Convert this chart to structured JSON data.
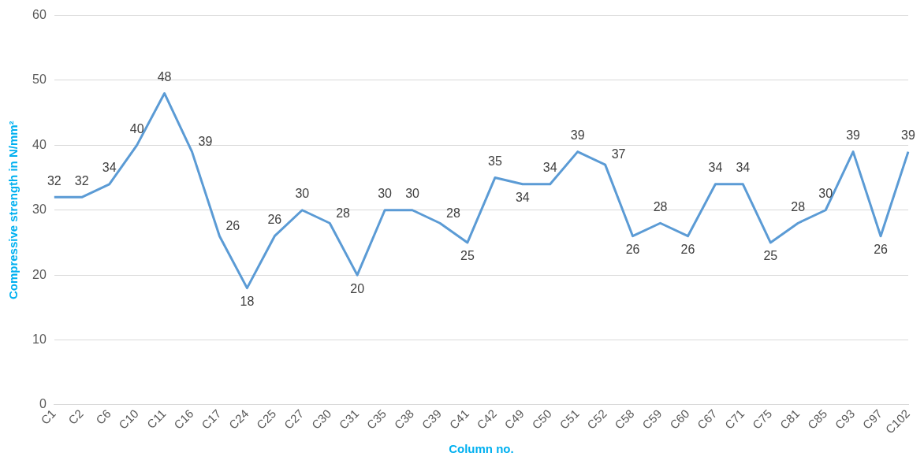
{
  "chart_data": {
    "type": "line",
    "xlabel": "Column no.",
    "ylabel": "Compressive strength in N/mm²",
    "categories": [
      "C1",
      "C2",
      "C6",
      "C10",
      "C11",
      "C16",
      "C17",
      "C24",
      "C25",
      "C27",
      "C30",
      "C31",
      "C35",
      "C38",
      "C39",
      "C41",
      "C42",
      "C49",
      "C50",
      "C51",
      "C52",
      "C58",
      "C59",
      "C60",
      "C67",
      "C71",
      "C75",
      "C81",
      "C85",
      "C93",
      "C97",
      "C102"
    ],
    "series": [
      {
        "color": "#5b9bd5",
        "values": [
          32,
          32,
          34,
          40,
          48,
          39,
          26,
          18,
          26,
          30,
          28,
          20,
          30,
          30,
          28,
          25,
          35,
          34,
          34,
          39,
          37,
          26,
          28,
          26,
          34,
          34,
          25,
          28,
          30,
          39,
          26,
          39
        ]
      }
    ],
    "ylim": [
      0,
      60
    ],
    "yticks": [
      0,
      10,
      20,
      30,
      40,
      50,
      60
    ],
    "grid": "y",
    "legend": false,
    "marker": "none",
    "line_style": "solid",
    "data_labels": true
  }
}
